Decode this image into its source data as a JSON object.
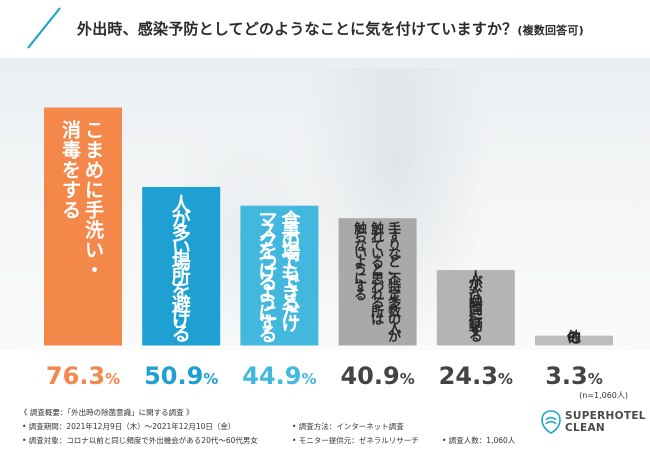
{
  "title": {
    "main": "外出時、感染予防としてどのようなことに気を付けていますか？",
    "sub": "(複数回答可)"
  },
  "colors": {
    "orange": "#f4874a",
    "blue": "#1ea0d2",
    "light_blue": "#43b8de",
    "dark_gray": "#a9a9a9",
    "mid_gray": "#b4b4b4",
    "light_gray": "#bdbdbd",
    "accent": "#1ea5c8"
  },
  "chart_data": {
    "type": "bar",
    "title": "外出時、感染予防としてどのようなことに気を付けていますか？(複数回答可)",
    "categories": [
      "こまめに手洗い・消毒をする",
      "人が多い場所を避ける",
      "食事の場でもできるだけマスクをつけるようにする",
      "手すりなど、不特定多数の人が触れていると思われる所は触らないようにする",
      "人が少ない時間に行動する",
      "その他"
    ],
    "category_lines": [
      [
        "こまめに手洗い・",
        "消毒をする"
      ],
      [
        "人が多い場所を避ける"
      ],
      [
        "食事の場でもできるだけ",
        "マスクをつけるようにする"
      ],
      [
        "手すりなど、不特定多数の人が",
        "触れていると思われる所は",
        "触らないようにする"
      ],
      [
        "人が少ない時間に行動する"
      ],
      [
        "その他"
      ]
    ],
    "values": [
      76.3,
      50.9,
      44.9,
      40.9,
      24.3,
      3.3
    ],
    "value_labels": [
      "76.3%",
      "50.9%",
      "44.9%",
      "40.9%",
      "24.3%",
      "3.3%"
    ],
    "unit": "%",
    "ylim": [
      0,
      80
    ],
    "note": "(n=1,060人)"
  },
  "footer": {
    "heading": "《 調査概要：「外出時の除菌意識」に関する調査 》",
    "period": "• 調査期間：2021年12月9日（木）～2021年12月10日（金）",
    "target": "• 調査対象：コロナ以前と同じ頻度で外出機会がある20代～60代男女",
    "method": "• 調査方法：インターネット調査",
    "provider": "• モニター提供元：ゼネラルリサーチ",
    "count": "• 調査人数：1,060人"
  },
  "brand": {
    "line1": "SUPERHOTEL",
    "line2": "CLEAN"
  }
}
